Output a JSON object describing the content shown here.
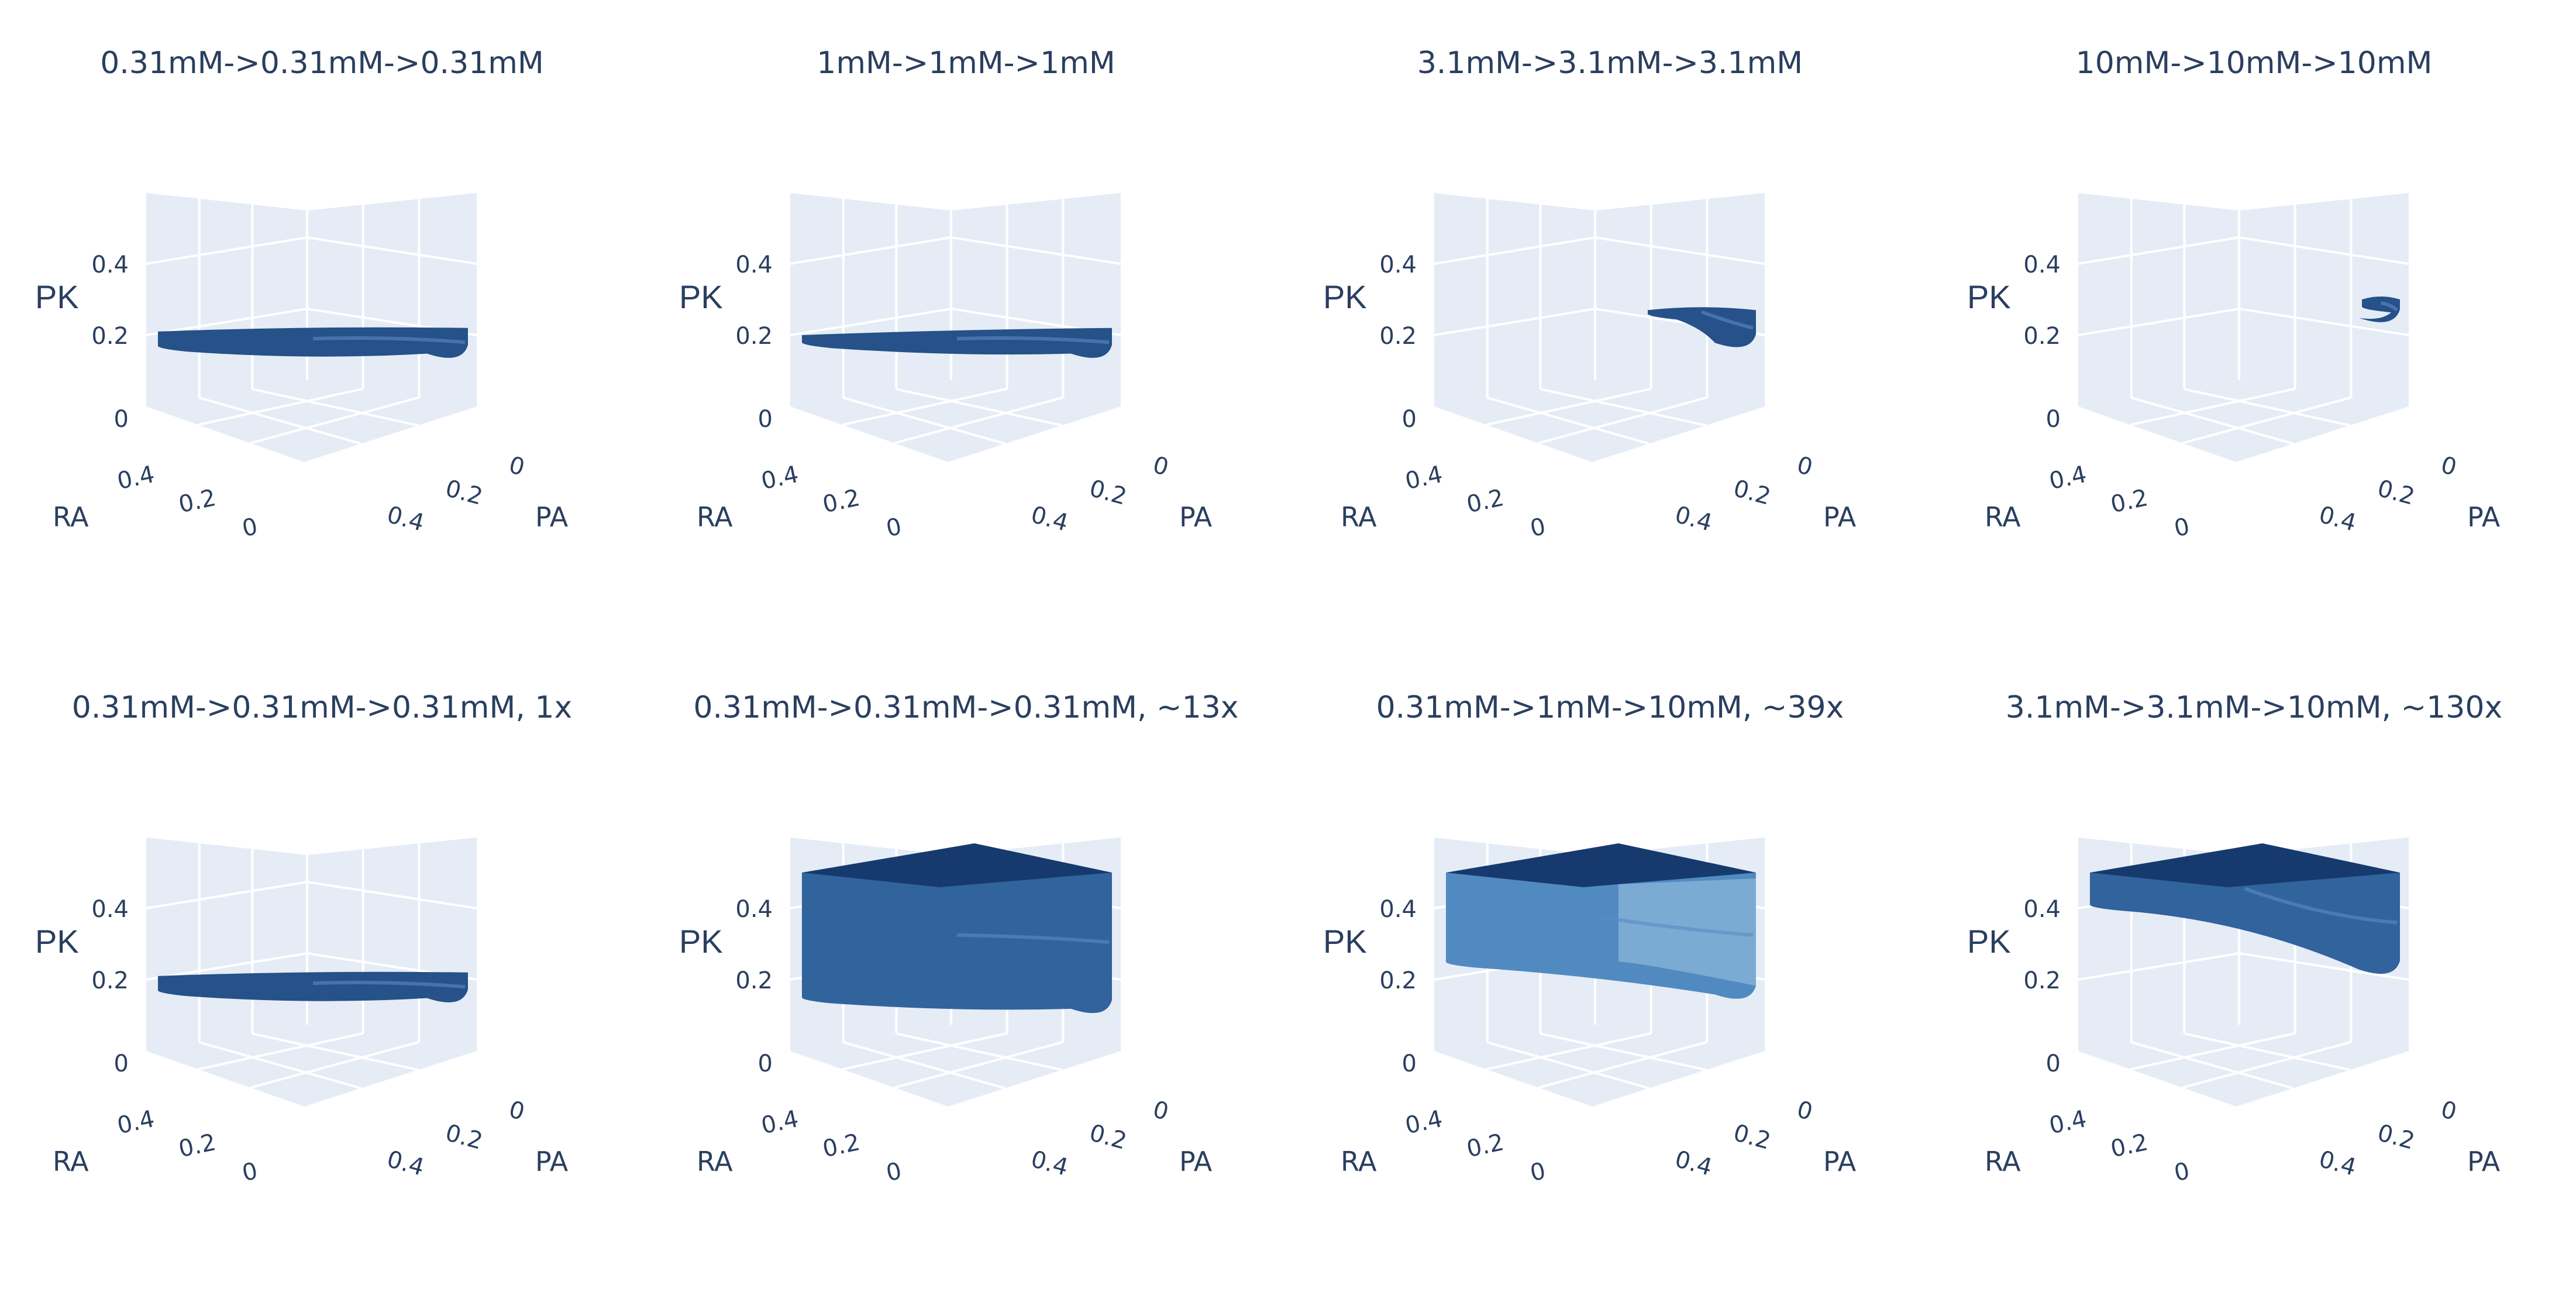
{
  "chart_data": [
    {
      "type": "surface3d",
      "title": "0.31mM->0.31mM->0.31mM",
      "axes": {
        "x": {
          "label": "RA",
          "ticks": [
            "0",
            "0.2",
            "0.4"
          ]
        },
        "y": {
          "label": "PA",
          "ticks": [
            "0",
            "0.2",
            "0.4"
          ]
        },
        "z": {
          "label": "PK",
          "ticks": [
            "0",
            "0.2",
            "0.4"
          ]
        }
      },
      "pk_band": {
        "bottom_left": 0.17,
        "top_left": 0.21,
        "top_right": 0.22,
        "bottom_right": 0.14
      },
      "shade": "dark"
    },
    {
      "type": "surface3d",
      "title": "1mM->1mM->1mM",
      "axes": {
        "x": {
          "label": "RA",
          "ticks": [
            "0",
            "0.2",
            "0.4"
          ]
        },
        "y": {
          "label": "PA",
          "ticks": [
            "0",
            "0.2",
            "0.4"
          ]
        },
        "z": {
          "label": "PK",
          "ticks": [
            "0",
            "0.2",
            "0.4"
          ]
        }
      },
      "pk_band": {
        "bottom_left": 0.18,
        "top_left": 0.2,
        "top_right": 0.22,
        "bottom_right": 0.14
      },
      "shade": "dark"
    },
    {
      "type": "surface3d",
      "title": "3.1mM->3.1mM->3.1mM",
      "axes": {
        "x": {
          "label": "RA",
          "ticks": [
            "0",
            "0.2",
            "0.4"
          ]
        },
        "y": {
          "label": "PA",
          "ticks": [
            "0",
            "0.2",
            "0.4"
          ]
        },
        "z": {
          "label": "PK",
          "ticks": [
            "0",
            "0.2",
            "0.4"
          ]
        }
      },
      "pk_band": {
        "bottom_left": 0.26,
        "top_left": 0.27,
        "top_right": 0.27,
        "bottom_right": 0.17
      },
      "shade": "dark"
    },
    {
      "type": "surface3d",
      "title": "10mM->10mM->10mM",
      "axes": {
        "x": {
          "label": "RA",
          "ticks": [
            "0",
            "0.2",
            "0.4"
          ]
        },
        "y": {
          "label": "PA",
          "ticks": [
            "0",
            "0.2",
            "0.4"
          ]
        },
        "z": {
          "label": "PK",
          "ticks": [
            "0",
            "0.2",
            "0.4"
          ]
        }
      },
      "pk_band": {
        "bottom_left": 0.28,
        "top_left": 0.3,
        "top_right": 0.3,
        "bottom_right": 0.24
      },
      "shade": "dark"
    },
    {
      "type": "surface3d",
      "title": "0.31mM->0.31mM->0.31mM, 1x",
      "axes": {
        "x": {
          "label": "RA",
          "ticks": [
            "0",
            "0.2",
            "0.4"
          ]
        },
        "y": {
          "label": "PA",
          "ticks": [
            "0",
            "0.2",
            "0.4"
          ]
        },
        "z": {
          "label": "PK",
          "ticks": [
            "0",
            "0.2",
            "0.4"
          ]
        }
      },
      "pk_band": {
        "bottom_left": 0.17,
        "top_left": 0.21,
        "top_right": 0.22,
        "bottom_right": 0.14
      },
      "shade": "dark"
    },
    {
      "type": "surface3d",
      "title": "0.31mM->0.31mM->0.31mM, ~13x",
      "axes": {
        "x": {
          "label": "RA",
          "ticks": [
            "0",
            "0.2",
            "0.4"
          ]
        },
        "y": {
          "label": "PA",
          "ticks": [
            "0",
            "0.2",
            "0.4"
          ]
        },
        "z": {
          "label": "PK",
          "ticks": [
            "0",
            "0.2",
            "0.4"
          ]
        }
      },
      "pk_band": {
        "bottom_left": 0.15,
        "top_left": 0.5,
        "top_right": 0.5,
        "bottom_right": 0.11
      },
      "shade": "medium"
    },
    {
      "type": "surface3d",
      "title": "0.31mM->1mM->10mM, ~39x",
      "axes": {
        "x": {
          "label": "RA",
          "ticks": [
            "0",
            "0.2",
            "0.4"
          ]
        },
        "y": {
          "label": "PA",
          "ticks": [
            "0",
            "0.2",
            "0.4"
          ]
        },
        "z": {
          "label": "PK",
          "ticks": [
            "0",
            "0.2",
            "0.4"
          ]
        }
      },
      "pk_band": {
        "bottom_left": 0.25,
        "top_left": 0.5,
        "top_right": 0.5,
        "bottom_right": 0.15
      },
      "shade": "light"
    },
    {
      "type": "surface3d",
      "title": "3.1mM->3.1mM->10mM, ~130x",
      "axes": {
        "x": {
          "label": "RA",
          "ticks": [
            "0",
            "0.2",
            "0.4"
          ]
        },
        "y": {
          "label": "PA",
          "ticks": [
            "0",
            "0.2",
            "0.4"
          ]
        },
        "z": {
          "label": "PK",
          "ticks": [
            "0",
            "0.2",
            "0.4"
          ]
        }
      },
      "pk_band": {
        "bottom_left": 0.41,
        "top_left": 0.5,
        "top_right": 0.5,
        "bottom_right": 0.22
      },
      "shade": "medium"
    }
  ],
  "colors": {
    "pane": "#e5ecf6",
    "grid": "#ffffff",
    "axis_text": "#2a3f5f",
    "surface_dark": "#1f4b85",
    "surface_dark_top": "#163a6d",
    "surface_light": "#4b86be",
    "surface_highlight": "#9fc4e2"
  }
}
